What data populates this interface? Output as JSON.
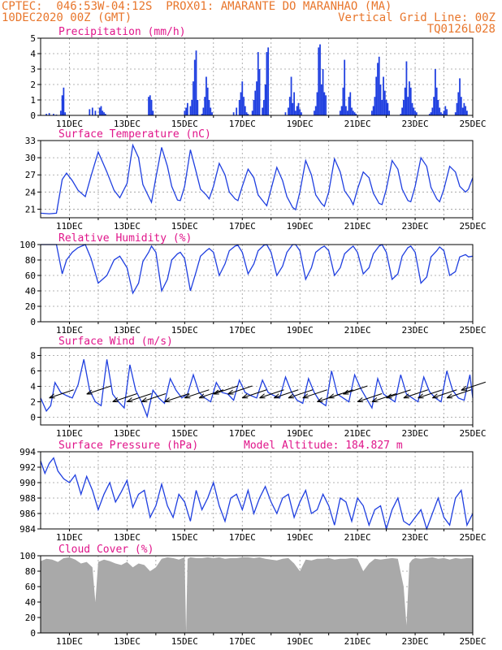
{
  "header": {
    "line1": "CPTEC:  046:53W-04:12S  PROX01: AMARANTE DO MARANHAO (MA)",
    "line2_left": "10DEC2020 00Z (GMT)",
    "line2_right": "Vertical Grid Line: 00Z",
    "line3_right": "TQ0126L028"
  },
  "colors": {
    "header": "#e8762c",
    "title": "#e0158a",
    "line": "#1f3fe0",
    "bar": "#1f3fe0",
    "cloud": "#a9a9a9",
    "grid": "#9a9a9a"
  },
  "chart_data": [
    {
      "type": "bar",
      "title": "Precipitation (mm/h)",
      "x_labels": [
        "11DEC",
        "13DEC",
        "15DEC",
        "17DEC",
        "19DEC",
        "21DEC",
        "23DEC",
        "25DEC"
      ],
      "ylim": [
        0,
        5
      ],
      "yticks": [
        0,
        1,
        2,
        3,
        4,
        5
      ],
      "x": [
        0.2,
        0.3,
        0.45,
        0.55,
        0.7,
        0.75,
        0.8,
        0.85,
        1.7,
        1.8,
        1.9,
        2.05,
        2.1,
        2.15,
        2.2,
        2.25,
        3.75,
        3.8,
        3.85,
        3.9,
        5.0,
        5.05,
        5.1,
        5.2,
        5.25,
        5.3,
        5.35,
        5.4,
        5.45,
        5.6,
        5.65,
        5.7,
        5.75,
        5.8,
        5.85,
        5.9,
        5.95,
        6.7,
        6.8,
        6.9,
        6.95,
        7.0,
        7.05,
        7.1,
        7.15,
        7.2,
        7.35,
        7.4,
        7.45,
        7.5,
        7.55,
        7.6,
        7.7,
        7.75,
        7.8,
        7.85,
        7.9,
        8.5,
        8.6,
        8.65,
        8.7,
        8.75,
        8.8,
        8.85,
        8.9,
        8.95,
        9.0,
        9.05,
        9.5,
        9.55,
        9.6,
        9.65,
        9.7,
        9.75,
        9.8,
        9.85,
        9.9,
        10.4,
        10.45,
        10.5,
        10.55,
        10.6,
        10.65,
        10.7,
        10.75,
        10.8,
        10.85,
        10.9,
        10.95,
        11.5,
        11.55,
        11.6,
        11.65,
        11.7,
        11.75,
        11.8,
        11.85,
        11.9,
        11.95,
        12.0,
        12.05,
        12.1,
        12.5,
        12.55,
        12.6,
        12.65,
        12.7,
        12.75,
        12.8,
        12.85,
        12.9,
        12.95,
        13.0,
        13.05,
        13.5,
        13.55,
        13.6,
        13.65,
        13.7,
        13.75,
        13.8,
        13.85,
        13.9,
        13.95,
        14.0,
        14.05,
        14.1,
        14.4,
        14.45,
        14.5,
        14.55,
        14.6,
        14.65,
        14.7,
        14.75,
        14.8
      ],
      "values": [
        0.1,
        0.15,
        0.1,
        0.05,
        0.3,
        1.3,
        1.8,
        0.2,
        0.4,
        0.5,
        0.3,
        0.5,
        0.6,
        0.3,
        0.2,
        0.1,
        1.2,
        1.3,
        1.0,
        0.3,
        0.3,
        0.5,
        0.8,
        0.6,
        1.0,
        2.2,
        3.6,
        4.2,
        1.0,
        0.1,
        0.5,
        1.2,
        2.5,
        1.8,
        1.0,
        0.5,
        0.2,
        0.2,
        0.5,
        1.0,
        1.5,
        2.2,
        1.2,
        0.6,
        0.2,
        0.1,
        0.3,
        1.0,
        1.6,
        2.2,
        4.1,
        3.0,
        0.5,
        1.0,
        2.0,
        4.1,
        4.4,
        0.2,
        0.5,
        1.2,
        2.5,
        0.8,
        1.5,
        0.3,
        0.6,
        0.8,
        0.4,
        0.2,
        0.3,
        0.6,
        1.5,
        4.4,
        4.6,
        2.0,
        3.0,
        1.5,
        1.3,
        0.3,
        0.6,
        1.8,
        3.6,
        0.6,
        0.3,
        1.2,
        1.5,
        0.5,
        0.3,
        0.2,
        0.1,
        0.3,
        0.6,
        1.2,
        2.5,
        3.4,
        3.8,
        2.0,
        1.0,
        2.5,
        1.6,
        1.0,
        0.8,
        0.3,
        0.1,
        0.5,
        1.0,
        1.8,
        3.5,
        1.2,
        2.2,
        1.8,
        0.8,
        0.5,
        0.3,
        0.2,
        0.1,
        0.2,
        0.5,
        1.2,
        3.0,
        1.8,
        1.0,
        0.5,
        0.2,
        0.1,
        0.3,
        0.6,
        0.4,
        0.2,
        0.8,
        1.5,
        2.4,
        1.2,
        0.5,
        0.8,
        0.6,
        0.3
      ]
    },
    {
      "type": "line",
      "title": "Surface Temperature (nC)",
      "x_labels": [
        "11DEC",
        "13DEC",
        "15DEC",
        "17DEC",
        "19DEC",
        "21DEC",
        "23DEC",
        "25DEC"
      ],
      "ylim": [
        19.5,
        33
      ],
      "yticks": [
        21,
        24,
        27,
        30,
        33
      ],
      "x": [
        0,
        0.3,
        0.55,
        0.75,
        0.9,
        1.1,
        1.3,
        1.55,
        1.75,
        2.0,
        2.3,
        2.55,
        2.75,
        3.0,
        3.2,
        3.4,
        3.55,
        3.75,
        3.85,
        4.0,
        4.2,
        4.4,
        4.55,
        4.75,
        4.85,
        5.0,
        5.2,
        5.4,
        5.55,
        5.75,
        5.85,
        6.0,
        6.2,
        6.4,
        6.55,
        6.75,
        6.85,
        7.0,
        7.2,
        7.4,
        7.55,
        7.75,
        7.85,
        8.0,
        8.2,
        8.4,
        8.55,
        8.75,
        8.85,
        9.0,
        9.2,
        9.4,
        9.55,
        9.75,
        9.85,
        10.0,
        10.2,
        10.4,
        10.55,
        10.75,
        10.85,
        11.0,
        11.2,
        11.4,
        11.55,
        11.75,
        11.85,
        12.0,
        12.2,
        12.4,
        12.55,
        12.75,
        12.85,
        13.0,
        13.2,
        13.4,
        13.55,
        13.75,
        13.85,
        14.0,
        14.2,
        14.4,
        14.55,
        14.75,
        14.85,
        15.0
      ],
      "values": [
        20.3,
        20.2,
        20.3,
        26.2,
        27.3,
        26.0,
        24.3,
        23.2,
        26.8,
        31.0,
        27.5,
        24.3,
        23.0,
        25.5,
        32.2,
        30.0,
        25.3,
        23.2,
        22.2,
        26.5,
        31.8,
        28.5,
        25.0,
        22.6,
        22.5,
        25.0,
        31.4,
        27.5,
        24.5,
        23.5,
        22.8,
        25.0,
        29.0,
        27.0,
        24.0,
        22.8,
        22.5,
        25.0,
        28.0,
        26.5,
        23.5,
        22.2,
        21.6,
        24.5,
        28.3,
        26.0,
        23.2,
        21.3,
        20.9,
        24.0,
        29.5,
        27.0,
        23.5,
        22.0,
        21.5,
        24.0,
        29.8,
        27.5,
        24.2,
        22.8,
        21.8,
        24.5,
        27.5,
        26.5,
        23.8,
        22.0,
        21.8,
        24.5,
        29.5,
        28.0,
        24.5,
        22.5,
        22.3,
        25.0,
        30.0,
        28.5,
        24.8,
        22.8,
        22.3,
        24.5,
        28.5,
        27.5,
        25.0,
        24.0,
        24.5,
        26.5
      ]
    },
    {
      "type": "line",
      "title": "Relative Humidity (%)",
      "x_labels": [
        "11DEC",
        "13DEC",
        "15DEC",
        "17DEC",
        "19DEC",
        "21DEC",
        "23DEC",
        "25DEC"
      ],
      "ylim": [
        0,
        100
      ],
      "yticks": [
        0,
        20,
        40,
        60,
        80,
        100
      ],
      "x": [
        0,
        0.3,
        0.55,
        0.75,
        0.9,
        1.1,
        1.3,
        1.55,
        1.75,
        2.0,
        2.3,
        2.55,
        2.75,
        3.0,
        3.2,
        3.4,
        3.55,
        3.75,
        3.85,
        4.0,
        4.2,
        4.4,
        4.55,
        4.75,
        4.85,
        5.0,
        5.2,
        5.4,
        5.55,
        5.75,
        5.85,
        6.0,
        6.2,
        6.4,
        6.55,
        6.75,
        6.85,
        7.0,
        7.2,
        7.4,
        7.55,
        7.75,
        7.85,
        8.0,
        8.2,
        8.4,
        8.55,
        8.75,
        8.85,
        9.0,
        9.2,
        9.4,
        9.55,
        9.75,
        9.85,
        10.0,
        10.2,
        10.4,
        10.55,
        10.75,
        10.85,
        11.0,
        11.2,
        11.4,
        11.55,
        11.75,
        11.85,
        12.0,
        12.2,
        12.4,
        12.55,
        12.75,
        12.85,
        13.0,
        13.2,
        13.4,
        13.55,
        13.75,
        13.85,
        14.0,
        14.2,
        14.4,
        14.55,
        14.75,
        14.85,
        15.0
      ],
      "values": [
        100,
        100,
        100,
        62,
        80,
        90,
        96,
        100,
        82,
        50,
        60,
        80,
        85,
        70,
        37,
        50,
        78,
        90,
        98,
        90,
        40,
        55,
        80,
        88,
        90,
        82,
        40,
        65,
        85,
        92,
        95,
        90,
        60,
        75,
        92,
        98,
        99,
        90,
        62,
        75,
        92,
        99,
        100,
        90,
        60,
        72,
        90,
        100,
        100,
        92,
        55,
        70,
        90,
        96,
        98,
        92,
        60,
        70,
        88,
        95,
        98,
        90,
        62,
        70,
        88,
        98,
        100,
        90,
        55,
        62,
        85,
        96,
        98,
        90,
        50,
        58,
        84,
        92,
        97,
        92,
        60,
        65,
        84,
        87,
        84,
        85
      ]
    },
    {
      "type": "line",
      "title": "Surface Wind (m/s)",
      "x_labels": [
        "11DEC",
        "13DEC",
        "15DEC",
        "17DEC",
        "19DEC",
        "21DEC",
        "23DEC",
        "25DEC"
      ],
      "ylim": [
        -1,
        9
      ],
      "yticks": [
        0,
        2,
        4,
        6,
        8
      ],
      "x": [
        0,
        0.2,
        0.35,
        0.5,
        0.7,
        0.9,
        1.1,
        1.3,
        1.5,
        1.7,
        1.9,
        2.1,
        2.3,
        2.5,
        2.7,
        2.9,
        3.1,
        3.3,
        3.5,
        3.7,
        3.9,
        4.1,
        4.3,
        4.5,
        4.7,
        4.9,
        5.1,
        5.3,
        5.5,
        5.7,
        5.9,
        6.1,
        6.3,
        6.5,
        6.7,
        6.9,
        7.1,
        7.3,
        7.5,
        7.7,
        7.9,
        8.1,
        8.3,
        8.5,
        8.7,
        8.9,
        9.1,
        9.3,
        9.5,
        9.7,
        9.9,
        10.1,
        10.3,
        10.5,
        10.7,
        10.9,
        11.1,
        11.3,
        11.5,
        11.7,
        11.9,
        12.1,
        12.3,
        12.5,
        12.7,
        12.9,
        13.1,
        13.3,
        13.5,
        13.7,
        13.9,
        14.1,
        14.3,
        14.5,
        14.7,
        14.9,
        15.0
      ],
      "values": [
        2.5,
        0.8,
        1.5,
        4.5,
        3.2,
        2.8,
        2.5,
        4.2,
        7.5,
        3.5,
        2.0,
        1.5,
        7.5,
        3.0,
        2.0,
        1.2,
        6.8,
        3.5,
        2.0,
        0.1,
        3.5,
        2.5,
        1.8,
        5.0,
        3.5,
        2.5,
        3.0,
        5.5,
        3.2,
        2.5,
        2.0,
        4.5,
        3.2,
        3.0,
        2.2,
        4.8,
        3.2,
        2.8,
        2.5,
        4.8,
        3.2,
        2.8,
        2.5,
        5.2,
        3.3,
        2.2,
        1.8,
        5.0,
        3.2,
        2.0,
        1.5,
        6.0,
        3.0,
        2.5,
        2.0,
        5.5,
        3.8,
        2.5,
        1.2,
        5.0,
        3.0,
        2.5,
        2.0,
        5.5,
        3.0,
        2.5,
        2.0,
        5.2,
        3.3,
        2.5,
        2.0,
        6.0,
        3.5,
        2.5,
        2.2,
        5.5,
        2.5
      ],
      "barbs_x": [
        0.3,
        1.6,
        2.5,
        3.0,
        3.5,
        4.3,
        5.0,
        5.5,
        6.0,
        6.5,
        7.0,
        7.6,
        8.1,
        8.6,
        9.1,
        9.6,
        10.0,
        10.5,
        11.0,
        11.5,
        12.0,
        12.6,
        13.1,
        13.6,
        14.1,
        14.6
      ],
      "barbs_y": [
        2.5,
        3.0,
        2.0,
        2.0,
        2.0,
        2.0,
        2.5,
        2.5,
        3.0,
        3.0,
        2.5,
        2.5,
        2.5,
        2.5,
        2.5,
        2.0,
        2.5,
        3.0,
        2.0,
        2.0,
        2.5,
        2.5,
        2.5,
        2.5,
        2.5,
        3.5
      ]
    },
    {
      "type": "line",
      "title": "Surface Pressure (hPa)",
      "annotation": "Model Altitude: 184.827 m",
      "x_labels": [
        "11DEC",
        "13DEC",
        "15DEC",
        "17DEC",
        "19DEC",
        "21DEC",
        "23DEC",
        "25DEC"
      ],
      "ylim": [
        984,
        994
      ],
      "yticks": [
        984,
        986,
        988,
        990,
        992,
        994
      ],
      "x": [
        0,
        0.15,
        0.3,
        0.45,
        0.6,
        0.8,
        1.0,
        1.2,
        1.4,
        1.6,
        1.8,
        2.0,
        2.2,
        2.4,
        2.6,
        2.8,
        3.0,
        3.2,
        3.4,
        3.6,
        3.8,
        4.0,
        4.2,
        4.4,
        4.6,
        4.8,
        5.0,
        5.2,
        5.4,
        5.6,
        5.8,
        6.0,
        6.2,
        6.4,
        6.6,
        6.8,
        7.0,
        7.2,
        7.4,
        7.6,
        7.8,
        8.0,
        8.2,
        8.4,
        8.6,
        8.8,
        9.0,
        9.2,
        9.4,
        9.6,
        9.8,
        10.0,
        10.2,
        10.4,
        10.6,
        10.8,
        11.0,
        11.2,
        11.4,
        11.6,
        11.8,
        12.0,
        12.2,
        12.4,
        12.6,
        12.8,
        13.0,
        13.2,
        13.4,
        13.6,
        13.8,
        14.0,
        14.2,
        14.4,
        14.6,
        14.8,
        15.0
      ],
      "values": [
        992.8,
        991.2,
        992.5,
        993.2,
        991.5,
        990.5,
        990.0,
        991.0,
        988.5,
        990.8,
        989.0,
        986.5,
        988.5,
        990.0,
        987.5,
        988.8,
        990.3,
        986.8,
        988.5,
        989.0,
        985.5,
        987.0,
        989.8,
        987.0,
        985.5,
        988.5,
        987.5,
        985.0,
        989.0,
        986.5,
        988.0,
        990.0,
        987.0,
        985.0,
        988.0,
        988.5,
        986.5,
        989.0,
        986.0,
        988.0,
        989.5,
        987.5,
        986.0,
        988.0,
        988.5,
        985.5,
        987.5,
        989.0,
        986.0,
        986.5,
        988.5,
        987.0,
        984.5,
        988.0,
        987.5,
        985.0,
        988.0,
        987.0,
        984.5,
        986.5,
        987.0,
        984.0,
        986.5,
        988.0,
        985.0,
        984.5,
        985.5,
        986.5,
        984.0,
        986.0,
        988.0,
        985.5,
        984.5,
        988.0,
        989.0,
        984.5,
        986.0
      ]
    },
    {
      "type": "area",
      "title": "Cloud Cover (%)",
      "x_labels": [
        "11DEC",
        "13DEC",
        "15DEC",
        "17DEC",
        "19DEC",
        "21DEC",
        "23DEC",
        "25DEC"
      ],
      "ylim": [
        0,
        100
      ],
      "yticks": [
        0,
        20,
        40,
        60,
        80,
        100
      ],
      "x": [
        0,
        0.2,
        0.4,
        0.6,
        0.8,
        1.0,
        1.2,
        1.4,
        1.6,
        1.8,
        1.9,
        2.0,
        2.2,
        2.4,
        2.6,
        2.8,
        3.0,
        3.2,
        3.4,
        3.6,
        3.8,
        4.0,
        4.2,
        4.4,
        4.6,
        4.8,
        5.0,
        5.05,
        5.1,
        5.2,
        5.4,
        5.6,
        5.8,
        6.0,
        6.2,
        6.4,
        6.6,
        6.8,
        7.0,
        7.2,
        7.4,
        7.6,
        7.8,
        8.0,
        8.2,
        8.4,
        8.6,
        8.8,
        9.0,
        9.2,
        9.4,
        9.6,
        9.8,
        10.0,
        10.2,
        10.4,
        10.6,
        10.8,
        11.0,
        11.2,
        11.4,
        11.6,
        11.8,
        12.0,
        12.2,
        12.4,
        12.6,
        12.7,
        12.8,
        12.9,
        13.0,
        13.2,
        13.4,
        13.6,
        13.8,
        14.0,
        14.2,
        14.4,
        14.6,
        14.8,
        15.0
      ],
      "values": [
        93,
        96,
        95,
        92,
        97,
        98,
        95,
        90,
        92,
        85,
        40,
        92,
        95,
        93,
        90,
        88,
        92,
        85,
        90,
        88,
        80,
        85,
        96,
        98,
        97,
        95,
        98,
        0,
        96,
        98,
        97,
        97,
        98,
        97,
        98,
        96,
        97,
        97,
        98,
        98,
        97,
        98,
        96,
        95,
        94,
        96,
        97,
        90,
        80,
        95,
        94,
        96,
        96,
        97,
        95,
        96,
        96,
        97,
        96,
        80,
        90,
        96,
        95,
        96,
        97,
        96,
        60,
        10,
        90,
        95,
        97,
        96,
        97,
        98,
        96,
        97,
        95,
        97,
        96,
        97,
        97
      ]
    }
  ]
}
